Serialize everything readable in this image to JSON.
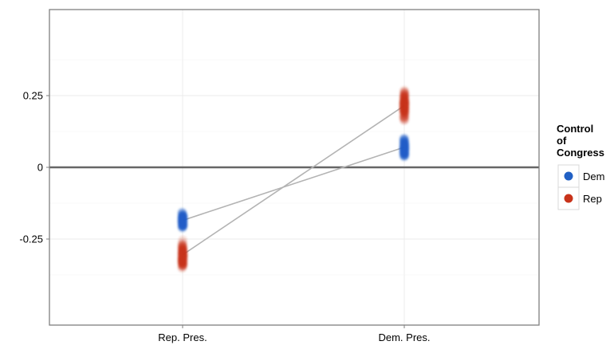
{
  "chart_data": {
    "type": "scatter",
    "categories": [
      "Rep. Pres.",
      "Dem. Pres."
    ],
    "ylim": [
      -0.55,
      0.55
    ],
    "yticks": [
      -0.25,
      0,
      0.25
    ],
    "ytick_labels": [
      "-0.25",
      "0",
      "0.25"
    ],
    "grid": true,
    "legend": {
      "title": "Control of Congress",
      "title_lines": [
        "Control",
        "of",
        "Congress"
      ],
      "position": "right",
      "entries": [
        {
          "label": "Dem",
          "color": "#2160c4"
        },
        {
          "label": "Rep",
          "color": "#c8331a"
        }
      ]
    },
    "series": [
      {
        "name": "Dem",
        "color": "#2160c4",
        "mean": [
          -0.185,
          0.07
        ],
        "spread": [
          [
            -0.23,
            -0.13
          ],
          [
            0.0,
            0.13
          ]
        ]
      },
      {
        "name": "Rep",
        "color": "#c8331a",
        "mean": [
          -0.305,
          0.215
        ],
        "spread": [
          [
            -0.39,
            -0.22
          ],
          [
            0.12,
            0.32
          ]
        ]
      }
    ],
    "reference_line": {
      "y": 0,
      "color": "#666666"
    },
    "connector_color": "#b3b3b3"
  }
}
